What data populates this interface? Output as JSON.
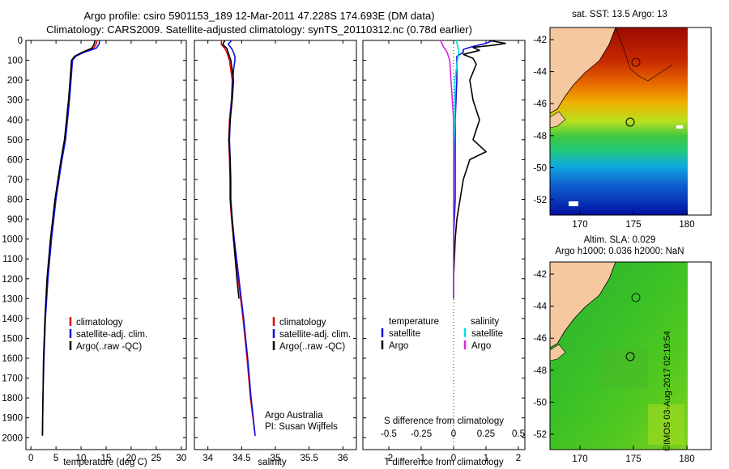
{
  "header": {
    "line1": "Argo profile: csiro 5901153_189 12-Mar-2011 47.228S 174.693E (DM data)",
    "line2": "Climatology: CARS2009. Satellite-adjusted climatology: synTS_20110312.nc (0.78d earlier)"
  },
  "colors": {
    "climatology": "#e00000",
    "satellite": "#1010e0",
    "argo": "#000000",
    "sal_satellite": "#00e0e0",
    "sal_argo": "#e020e0"
  },
  "chart_data": [
    {
      "type": "line",
      "name": "temperature-profile",
      "xlabel": "temperature (deg C)",
      "xlim": [
        -1,
        31
      ],
      "xticks": [
        0,
        5,
        10,
        15,
        20,
        25,
        30
      ],
      "ylim": [
        0,
        2060
      ],
      "yticks": [
        0,
        100,
        200,
        300,
        400,
        500,
        600,
        700,
        800,
        900,
        1000,
        1100,
        1200,
        1300,
        1400,
        1500,
        1600,
        1700,
        1800,
        1900,
        2000
      ],
      "series": [
        {
          "name": "climatology",
          "color": "#e00000",
          "depth": [
            0,
            20,
            40,
            60,
            80,
            100,
            200,
            300,
            400,
            500,
            600,
            700,
            800,
            1000,
            1200,
            1400
          ],
          "values": [
            13.2,
            13.0,
            12.5,
            10.5,
            8.8,
            8.2,
            7.9,
            7.6,
            7.2,
            6.8,
            6.1,
            5.5,
            4.9,
            4.0,
            3.3,
            2.8
          ]
        },
        {
          "name": "satellite-adj. clim.",
          "color": "#1010e0",
          "depth": [
            0,
            20,
            40,
            60,
            80,
            100,
            200,
            300,
            400,
            500,
            600,
            700,
            800,
            1000,
            1200,
            1400,
            1600,
            1800,
            1990
          ],
          "values": [
            13.7,
            13.6,
            13.0,
            10.6,
            8.9,
            8.3,
            8.0,
            7.7,
            7.3,
            6.9,
            6.2,
            5.6,
            5.0,
            4.1,
            3.4,
            2.9,
            2.6,
            2.4,
            2.3
          ]
        },
        {
          "name": "Argo(..raw -QC)",
          "color": "#000000",
          "depth": [
            0,
            20,
            40,
            60,
            80,
            100,
            200,
            300,
            400,
            500,
            600,
            700,
            800,
            1000,
            1200,
            1400,
            1600,
            1800,
            1990
          ],
          "values": [
            12.8,
            12.6,
            12.1,
            10.2,
            8.7,
            8.1,
            7.8,
            7.5,
            7.1,
            6.7,
            6.0,
            5.4,
            4.8,
            3.9,
            3.2,
            2.8,
            2.5,
            2.4,
            2.3
          ]
        }
      ],
      "legend": [
        "climatology",
        "satellite-adj. clim.",
        "Argo(..raw -QC)"
      ],
      "legend_position": "bottom-center"
    },
    {
      "type": "line",
      "name": "salinity-profile",
      "xlabel": "salinity",
      "xlim": [
        33.8,
        36.2
      ],
      "xticks": [
        34,
        34.5,
        35,
        35.5,
        36
      ],
      "ylim": [
        0,
        2060
      ],
      "series": [
        {
          "name": "climatology",
          "color": "#e00000",
          "depth": [
            0,
            20,
            40,
            60,
            80,
            100,
            150,
            200,
            300,
            400,
            500,
            600,
            700,
            800,
            900,
            1000,
            1200,
            1400,
            1600,
            1800,
            1990
          ],
          "values": [
            34.2,
            34.2,
            34.25,
            34.28,
            34.3,
            34.32,
            34.34,
            34.36,
            34.35,
            34.32,
            34.31,
            34.32,
            34.33,
            34.33,
            34.35,
            34.38,
            34.45,
            34.52,
            34.58,
            34.63,
            34.7
          ]
        },
        {
          "name": "satellite-adj. clim.",
          "color": "#1010e0",
          "depth": [
            0,
            20,
            40,
            60,
            80,
            100,
            150,
            200,
            300,
            400,
            500,
            600,
            700,
            800,
            900,
            1000,
            1200,
            1400,
            1600,
            1800,
            1990
          ],
          "values": [
            34.35,
            34.3,
            34.35,
            34.38,
            34.4,
            34.4,
            34.38,
            34.37,
            34.35,
            34.33,
            34.32,
            34.33,
            34.34,
            34.34,
            34.36,
            34.39,
            34.46,
            34.53,
            34.59,
            34.64,
            34.7
          ]
        },
        {
          "name": "Argo(..raw -QC)",
          "color": "#000000",
          "depth": [
            0,
            20,
            40,
            60,
            80,
            100,
            150,
            200,
            300,
            400,
            500,
            600,
            700,
            800,
            900,
            1000,
            1200,
            1300
          ],
          "values": [
            34.25,
            34.22,
            34.28,
            34.3,
            34.32,
            34.34,
            34.36,
            34.38,
            34.36,
            34.33,
            34.31,
            34.33,
            34.33,
            34.33,
            34.36,
            34.38,
            34.43,
            34.46
          ]
        }
      ],
      "legend": [
        "climatology",
        "satellite-adj. clim.",
        "Argo(..raw -QC)"
      ],
      "legend_position": "bottom-center",
      "annotation": [
        "Argo Australia",
        "PI: Susan Wijffels"
      ]
    },
    {
      "type": "line",
      "name": "difference-profile",
      "xlabel_top": "S difference from climatology",
      "xlabel": "T difference from climatology",
      "xlim_T": [
        -2.8,
        2.2
      ],
      "xticks_T": [
        -2,
        -1,
        0,
        1,
        2
      ],
      "xticks_S": [
        -0.5,
        -0.25,
        0,
        0.25,
        0.5
      ],
      "xtick_labels_S": [
        "-0.5",
        "-0.25",
        "0",
        "0.25",
        "0.5"
      ],
      "series": [
        {
          "name": "temperature satellite",
          "color": "#1010e0",
          "depth": [
            0,
            15,
            30,
            45,
            60,
            80,
            100,
            200,
            400,
            600,
            800,
            1000,
            1200,
            1300
          ],
          "values": [
            1.2,
            1.0,
            0.6,
            0.3,
            0.3,
            0.1,
            0.1,
            0.1,
            0.05,
            0.05,
            0.05,
            0.0,
            0.0,
            0.0
          ]
        },
        {
          "name": "temperature Argo",
          "color": "#000000",
          "depth": [
            0,
            15,
            25,
            35,
            50,
            70,
            90,
            120,
            200,
            300,
            400,
            500,
            560,
            600,
            650,
            700,
            800,
            900,
            1000,
            1200,
            1300
          ],
          "values": [
            1.1,
            1.6,
            1.2,
            0.6,
            0.8,
            0.3,
            0.6,
            0.7,
            0.5,
            0.6,
            0.8,
            0.6,
            1.0,
            0.5,
            0.4,
            0.3,
            0.2,
            0.1,
            0.05,
            0.0,
            0.0
          ]
        },
        {
          "name": "salinity satellite",
          "color": "#00e0e0",
          "depth": [
            0,
            50,
            100,
            200,
            400,
            600,
            800,
            1000,
            1200,
            1300
          ],
          "values": [
            0.02,
            0.04,
            0.03,
            0.01,
            0.01,
            0.0,
            0.0,
            0.0,
            0.0,
            0.0
          ]
        },
        {
          "name": "salinity Argo",
          "color": "#e020e0",
          "depth": [
            0,
            30,
            60,
            100,
            200,
            300,
            400,
            600,
            800,
            1000,
            1200,
            1300
          ],
          "values": [
            -0.1,
            -0.08,
            -0.05,
            -0.03,
            -0.02,
            -0.01,
            0.0,
            0.0,
            0.0,
            0.0,
            0.0,
            0.0
          ]
        }
      ],
      "legend": {
        "temperature_header": "temperature",
        "salinity_header": "salinity",
        "items": [
          "satellite",
          "Argo",
          "satellite",
          "Argo"
        ]
      }
    }
  ],
  "maps": {
    "sst": {
      "title": "sat. SST: 13.5 Argo: 13",
      "yticks": [
        "-42",
        "-44",
        "-46",
        "-48",
        "-50",
        "-52"
      ],
      "xticks": [
        "170",
        "175",
        "180"
      ]
    },
    "sla": {
      "title_line1": "Altim. SLA: 0.029",
      "title_line2": "Argo h1000: 0.036 h2000: NaN",
      "yticks": [
        "-42",
        "-44",
        "-46",
        "-48",
        "-50",
        "-52"
      ],
      "xticks": [
        "170",
        "175",
        "180"
      ]
    }
  },
  "footer_stamp": "©IMOS 03-Aug-2017 02:19:54"
}
